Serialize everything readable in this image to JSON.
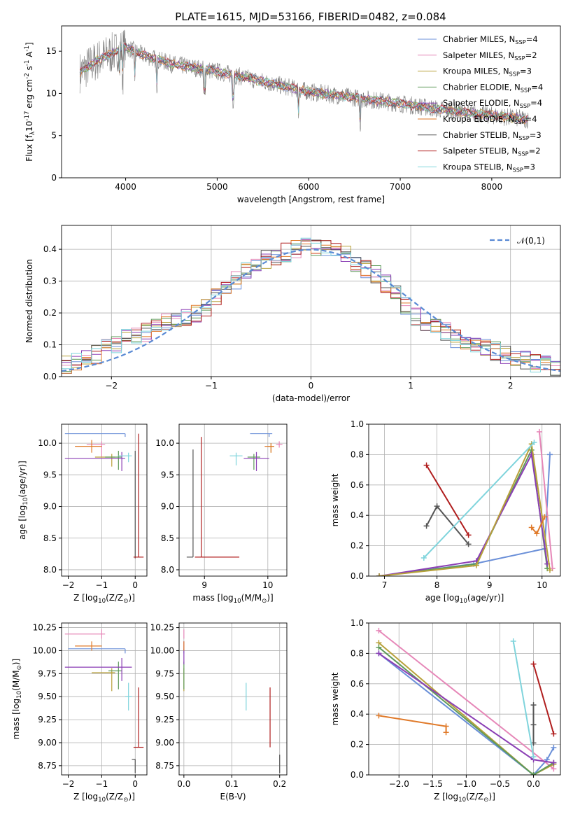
{
  "figure_title": "PLATE=1615, MJD=53166, FIBERID=0482, z=0.084",
  "series": [
    {
      "name": "Chabrier MILES, N$_{SSP}$=4",
      "color": "#6a8fd8"
    },
    {
      "name": "Salpeter MILES, N$_{SSP}$=2",
      "color": "#e687b8"
    },
    {
      "name": "Kroupa MILES, N$_{SSP}$=3",
      "color": "#b8a13a"
    },
    {
      "name": "Chabrier ELODIE, N$_{SSP}$=4",
      "color": "#5f9a5a"
    },
    {
      "name": "Salpeter ELODIE, N$_{SSP}$=4",
      "color": "#8b3fb5"
    },
    {
      "name": "Kroupa ELODIE, N$_{SSP}$=4",
      "color": "#e07a2a"
    },
    {
      "name": "Chabrier STELIB, N$_{SSP}$=3",
      "color": "#555555"
    },
    {
      "name": "Salpeter STELIB, N$_{SSP}$=2",
      "color": "#b01e1e"
    },
    {
      "name": "Kroupa STELIB, N$_{SSP}$=3",
      "color": "#7fd4dc"
    }
  ],
  "chart_data": [
    {
      "id": "spectrum",
      "type": "line",
      "xlabel": "wavelength [Angstrom, rest frame]",
      "ylabel": "Flux [f$_\\lambda$10$^{-17}$ erg cm$^{-2}$ s$^{-1}$ A$^{-1}$]",
      "xlim": [
        3300,
        8750
      ],
      "ylim": [
        0,
        18
      ],
      "xticks": [
        4000,
        5000,
        6000,
        7000,
        8000
      ],
      "yticks": [
        0,
        5,
        10,
        15
      ],
      "grid": false,
      "legend": "right",
      "continuum_model": {
        "x": [
          3500,
          3700,
          4000,
          4200,
          4500,
          5000,
          5500,
          6000,
          6500,
          7000,
          7500,
          8000,
          8400
        ],
        "y": [
          12.5,
          14.0,
          15.5,
          14.5,
          13.5,
          12.6,
          11.4,
          10.2,
          9.5,
          8.8,
          8.0,
          7.4,
          6.9
        ]
      }
    },
    {
      "id": "residuals",
      "type": "histogram",
      "xlabel": "(data-model)/error",
      "ylabel": "Normed distribution",
      "xlim": [
        -2.5,
        2.5
      ],
      "ylim": [
        0,
        0.475
      ],
      "xticks": [
        -2,
        -1,
        0,
        1,
        2
      ],
      "yticks": [
        0.0,
        0.1,
        0.2,
        0.3,
        0.4
      ],
      "grid": true,
      "legend": "top-right",
      "reference_curve": {
        "name": "$\\mathcal{N}(0,1)$",
        "mean": 0,
        "sigma": 1,
        "color": "#5a8ad4"
      },
      "bin_width": 0.1,
      "envelope": [
        0.04,
        0.05,
        0.06,
        0.07,
        0.09,
        0.1,
        0.12,
        0.13,
        0.14,
        0.16,
        0.17,
        0.18,
        0.19,
        0.2,
        0.22,
        0.25,
        0.27,
        0.3,
        0.33,
        0.35,
        0.37,
        0.38,
        0.39,
        0.4,
        0.41,
        0.41,
        0.41,
        0.4,
        0.38,
        0.36,
        0.34,
        0.32,
        0.29,
        0.26,
        0.22,
        0.19,
        0.17,
        0.15,
        0.14,
        0.12,
        0.11,
        0.1,
        0.09,
        0.08,
        0.07,
        0.06,
        0.05,
        0.04,
        0.035,
        0.03
      ]
    },
    {
      "id": "age-vs-Z",
      "type": "scatter",
      "xlabel": "Z [log$_{10}$(Z/Z$_\\odot$)]",
      "ylabel": "age  [log$_{10}$(age/yr)]",
      "xlim": [
        -2.2,
        0.35
      ],
      "ylim": [
        7.9,
        10.3
      ],
      "xticks": [
        -2,
        -1,
        0
      ],
      "yticks": [
        8.0,
        8.5,
        9.0,
        9.5,
        10.0
      ],
      "grid": true,
      "points": [
        {
          "s": 0,
          "x": -0.3,
          "y": 10.15,
          "xerr": [
            1.8,
            0
          ],
          "yerr": [
            0.05,
            0
          ]
        },
        {
          "s": 1,
          "x": -1.0,
          "y": 9.98,
          "xerr": [
            0.45,
            0.1
          ],
          "yerr": [
            0.2,
            0.05
          ]
        },
        {
          "s": 2,
          "x": -0.7,
          "y": 9.78,
          "xerr": [
            0.5,
            0.1
          ],
          "yerr": [
            0.15,
            0.05
          ]
        },
        {
          "s": 3,
          "x": -0.5,
          "y": 9.78,
          "xerr": [
            0.4,
            0.1
          ],
          "yerr": [
            0.2,
            0.1
          ]
        },
        {
          "s": 4,
          "x": -0.4,
          "y": 9.76,
          "xerr": [
            1.7,
            0.1
          ],
          "yerr": [
            0.2,
            0.1
          ]
        },
        {
          "s": 5,
          "x": -1.3,
          "y": 9.95,
          "xerr": [
            0.5,
            0.3
          ],
          "yerr": [
            0.1,
            0.1
          ]
        },
        {
          "s": 6,
          "x": 0.0,
          "y": 9.88,
          "xerr": [
            0,
            0
          ],
          "yerr": [
            1.7,
            0
          ]
        },
        {
          "s": 7,
          "x": 0.1,
          "y": 8.2,
          "xerr": [
            0.15,
            0.15
          ],
          "yerr": [
            0,
            1.95
          ]
        },
        {
          "s": 8,
          "x": -0.2,
          "y": 9.8,
          "xerr": [
            0.3,
            0.1
          ],
          "yerr": [
            0.1,
            0.05
          ]
        }
      ]
    },
    {
      "id": "age-vs-mass",
      "type": "scatter",
      "xlabel": "mass [log$_{10}$(M/M$_\\odot$)]",
      "ylabel": "",
      "xlim": [
        8.6,
        10.3
      ],
      "ylim": [
        7.9,
        10.3
      ],
      "xticks": [
        9,
        10
      ],
      "yticks": [
        8.0,
        8.5,
        9.0,
        9.5,
        10.0
      ],
      "grid": true,
      "points": [
        {
          "s": 0,
          "x": 10.02,
          "y": 10.15,
          "xerr": [
            0.3,
            0.05
          ],
          "yerr": [
            0.05,
            0
          ]
        },
        {
          "s": 1,
          "x": 10.18,
          "y": 9.98,
          "xerr": [
            0.05,
            0.05
          ],
          "yerr": [
            0.05,
            0.05
          ]
        },
        {
          "s": 2,
          "x": 10.05,
          "y": 9.95,
          "xerr": [
            0.05,
            0.05
          ],
          "yerr": [
            0.1,
            0.05
          ]
        },
        {
          "s": 3,
          "x": 9.78,
          "y": 9.78,
          "xerr": [
            0.1,
            0.1
          ],
          "yerr": [
            0.2,
            0.05
          ]
        },
        {
          "s": 4,
          "x": 9.82,
          "y": 9.76,
          "xerr": [
            0.2,
            0.2
          ],
          "yerr": [
            0.2,
            0.1
          ]
        },
        {
          "s": 5,
          "x": 10.05,
          "y": 9.95,
          "xerr": [
            0.1,
            0.05
          ],
          "yerr": [
            0.1,
            0.05
          ]
        },
        {
          "s": 6,
          "x": 8.82,
          "y": 8.2,
          "xerr": [
            0.1,
            0
          ],
          "yerr": [
            0,
            1.7
          ]
        },
        {
          "s": 7,
          "x": 8.95,
          "y": 8.2,
          "xerr": [
            0.1,
            0.6
          ],
          "yerr": [
            0,
            1.9
          ]
        },
        {
          "s": 8,
          "x": 9.5,
          "y": 9.8,
          "xerr": [
            0.1,
            0.1
          ],
          "yerr": [
            0.15,
            0.05
          ]
        }
      ]
    },
    {
      "id": "weight-vs-age",
      "type": "line",
      "xlabel": "age  [log$_{10}$(age/yr)]",
      "ylabel": "mass weight",
      "xlim": [
        6.7,
        10.35
      ],
      "ylim": [
        0,
        1
      ],
      "xticks": [
        7,
        8,
        9,
        10
      ],
      "yticks": [
        0.0,
        0.2,
        0.4,
        0.6,
        0.8,
        1.0
      ],
      "grid": true,
      "lines": [
        {
          "s": 0,
          "x": [
            6.9,
            8.7,
            10.05,
            10.15
          ],
          "y": [
            0.0,
            0.08,
            0.18,
            0.8
          ]
        },
        {
          "s": 1,
          "x": [
            9.95,
            10.2
          ],
          "y": [
            0.95,
            0.05
          ]
        },
        {
          "s": 3,
          "x": [
            6.9,
            8.75,
            9.8,
            10.1
          ],
          "y": [
            0.0,
            0.08,
            0.83,
            0.05
          ]
        },
        {
          "s": 4,
          "x": [
            6.9,
            8.75,
            9.8,
            10.1
          ],
          "y": [
            0.0,
            0.1,
            0.8,
            0.08
          ]
        },
        {
          "s": 2,
          "x": [
            6.9,
            8.75,
            9.8,
            10.15
          ],
          "y": [
            0.0,
            0.07,
            0.87,
            0.04
          ]
        },
        {
          "s": 5,
          "x": [
            9.8,
            9.9,
            10.05
          ],
          "y": [
            0.32,
            0.28,
            0.39
          ]
        },
        {
          "s": 6,
          "x": [
            7.8,
            8.0,
            8.6
          ],
          "y": [
            0.33,
            0.46,
            0.21
          ]
        },
        {
          "s": 7,
          "x": [
            7.8,
            8.6
          ],
          "y": [
            0.73,
            0.27
          ]
        },
        {
          "s": 8,
          "x": [
            7.75,
            9.85
          ],
          "y": [
            0.12,
            0.88
          ]
        }
      ]
    },
    {
      "id": "mass-vs-Z",
      "type": "scatter",
      "xlabel": "Z [log$_{10}$(Z/Z$_\\odot$)]",
      "ylabel": "mass [log$_{10}$(M/M$_\\odot$)]",
      "xlim": [
        -2.2,
        0.35
      ],
      "ylim": [
        8.65,
        10.3
      ],
      "xticks": [
        -2,
        -1,
        0
      ],
      "yticks": [
        8.75,
        9.0,
        9.25,
        9.5,
        9.75,
        10.0,
        10.25
      ],
      "grid": true,
      "points": [
        {
          "s": 0,
          "x": -0.3,
          "y": 10.02,
          "xerr": [
            1.7,
            0
          ],
          "yerr": [
            0.05,
            0
          ]
        },
        {
          "s": 1,
          "x": -1.0,
          "y": 10.18,
          "xerr": [
            1.1,
            0.1
          ],
          "yerr": [
            0.05,
            0.05
          ]
        },
        {
          "s": 2,
          "x": -0.7,
          "y": 9.76,
          "xerr": [
            0.6,
            0.1
          ],
          "yerr": [
            0.2,
            0.05
          ]
        },
        {
          "s": 3,
          "x": -0.5,
          "y": 9.78,
          "xerr": [
            0.3,
            0.1
          ],
          "yerr": [
            0.2,
            0.1
          ]
        },
        {
          "s": 4,
          "x": -0.4,
          "y": 9.82,
          "xerr": [
            1.7,
            0.3
          ],
          "yerr": [
            0.15,
            0.1
          ]
        },
        {
          "s": 5,
          "x": -1.3,
          "y": 10.05,
          "xerr": [
            0.5,
            0.3
          ],
          "yerr": [
            0.05,
            0.05
          ]
        },
        {
          "s": 6,
          "x": 0.0,
          "y": 8.82,
          "xerr": [
            0.1,
            0
          ],
          "yerr": [
            0.15,
            0
          ]
        },
        {
          "s": 7,
          "x": 0.1,
          "y": 8.95,
          "xerr": [
            0.15,
            0.15
          ],
          "yerr": [
            0,
            0.65
          ]
        },
        {
          "s": 8,
          "x": -0.2,
          "y": 9.5,
          "xerr": [
            0.1,
            0.1
          ],
          "yerr": [
            0.15,
            0.15
          ]
        }
      ]
    },
    {
      "id": "mass-vs-EBV",
      "type": "scatter",
      "xlabel": "E(B-V)",
      "ylabel": "",
      "xlim": [
        -0.01,
        0.215
      ],
      "ylim": [
        8.65,
        10.3
      ],
      "xticks": [
        0.0,
        0.1,
        0.2
      ],
      "yticks": [
        8.75,
        9.0,
        9.25,
        9.5,
        9.75,
        10.0,
        10.25
      ],
      "grid": true,
      "points": [
        {
          "s": 0,
          "x": 0.0,
          "y": 10.02,
          "xerr": [
            0,
            0
          ],
          "yerr": [
            0.05,
            0
          ]
        },
        {
          "s": 1,
          "x": 0.0,
          "y": 10.18,
          "xerr": [
            0,
            0
          ],
          "yerr": [
            0.05,
            0.05
          ]
        },
        {
          "s": 2,
          "x": 0.0,
          "y": 9.76,
          "xerr": [
            0,
            0
          ],
          "yerr": [
            0.2,
            0.05
          ]
        },
        {
          "s": 3,
          "x": 0.0,
          "y": 9.78,
          "xerr": [
            0,
            0
          ],
          "yerr": [
            0.2,
            0.1
          ]
        },
        {
          "s": 4,
          "x": 0.0,
          "y": 10.0,
          "xerr": [
            0,
            0
          ],
          "yerr": [
            0.15,
            0.1
          ]
        },
        {
          "s": 5,
          "x": 0.0,
          "y": 10.05,
          "xerr": [
            0,
            0
          ],
          "yerr": [
            0.05,
            0.05
          ]
        },
        {
          "s": 6,
          "x": 0.2,
          "y": 8.82,
          "xerr": [
            0,
            0
          ],
          "yerr": [
            0.15,
            0.05
          ]
        },
        {
          "s": 7,
          "x": 0.18,
          "y": 9.3,
          "xerr": [
            0,
            0
          ],
          "yerr": [
            0.35,
            0.3
          ]
        },
        {
          "s": 8,
          "x": 0.13,
          "y": 9.5,
          "xerr": [
            0,
            0
          ],
          "yerr": [
            0.15,
            0.15
          ]
        }
      ]
    },
    {
      "id": "weight-vs-Z",
      "type": "line",
      "xlabel": "Z [log$_{10}$(Z/Z$_\\odot$)]",
      "ylabel": "mass weight",
      "xlim": [
        -2.45,
        0.4
      ],
      "ylim": [
        0,
        1
      ],
      "xticks": [
        -2.0,
        -1.5,
        -1.0,
        -0.5,
        0.0
      ],
      "yticks": [
        0.0,
        0.2,
        0.4,
        0.6,
        0.8,
        1.0
      ],
      "grid": true,
      "lines": [
        {
          "s": 0,
          "x": [
            -2.3,
            0.0,
            0.2,
            0.3
          ],
          "y": [
            0.8,
            0.0,
            0.1,
            0.18
          ]
        },
        {
          "s": 1,
          "x": [
            -2.3,
            0.3
          ],
          "y": [
            0.95,
            0.04
          ]
        },
        {
          "s": 2,
          "x": [
            -2.3,
            0.0,
            0.3
          ],
          "y": [
            0.87,
            0.0,
            0.07
          ]
        },
        {
          "s": 3,
          "x": [
            -2.3,
            0.0,
            0.3
          ],
          "y": [
            0.84,
            0.0,
            0.08
          ]
        },
        {
          "s": 4,
          "x": [
            -2.3,
            0.0,
            0.3
          ],
          "y": [
            0.8,
            0.1,
            0.08
          ]
        },
        {
          "s": 5,
          "x": [
            -2.3,
            -1.3,
            -1.3
          ],
          "y": [
            0.39,
            0.32,
            0.28
          ]
        },
        {
          "s": 6,
          "x": [
            0.0,
            0.0,
            0.0
          ],
          "y": [
            0.46,
            0.33,
            0.21
          ]
        },
        {
          "s": 7,
          "x": [
            0.0,
            0.3
          ],
          "y": [
            0.73,
            0.27
          ]
        },
        {
          "s": 8,
          "x": [
            -0.3,
            0.0
          ],
          "y": [
            0.88,
            0.12
          ]
        }
      ]
    }
  ]
}
